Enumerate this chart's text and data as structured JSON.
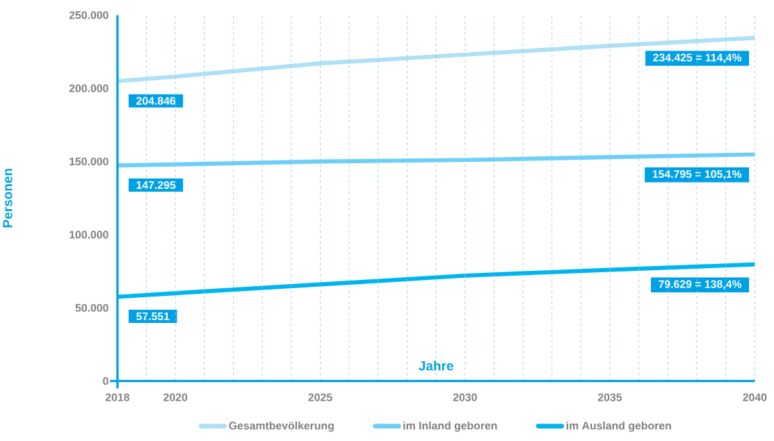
{
  "chart_data": {
    "type": "line",
    "xlabel": "Jahre",
    "ylabel": "Personen",
    "x": [
      2018,
      2020,
      2025,
      2030,
      2035,
      2040
    ],
    "series": [
      {
        "name": "Gesamtbevölkerung",
        "color": "#aee0f7",
        "values": [
          204846,
          208000,
          217000,
          223000,
          229000,
          234425
        ],
        "value_labels": [
          "204.846",
          null,
          null,
          null,
          null,
          "234.425 = 114,4%"
        ]
      },
      {
        "name": "im Inland geboren",
        "color": "#6dcff6",
        "values": [
          147295,
          148000,
          150000,
          151000,
          153000,
          154795
        ],
        "value_labels": [
          "147.295",
          null,
          null,
          null,
          null,
          "154.795 = 105,1%"
        ]
      },
      {
        "name": "im Ausland geboren",
        "color": "#00b4ee",
        "values": [
          57551,
          60000,
          66000,
          72000,
          76000,
          79629
        ],
        "value_labels": [
          "57.551",
          null,
          null,
          null,
          null,
          "79.629 = 138,4%"
        ]
      }
    ],
    "xlim": [
      2018,
      2040
    ],
    "ylim": [
      0,
      250000
    ],
    "xticks": [
      2018,
      {
        "value": 2019,
        "label": null
      },
      2020,
      {
        "value": 2021,
        "label": null
      },
      {
        "value": 2022,
        "label": null
      },
      {
        "value": 2023,
        "label": null
      },
      {
        "value": 2024,
        "label": null
      },
      2025,
      {
        "value": 2026,
        "label": null
      },
      {
        "value": 2027,
        "label": null
      },
      {
        "value": 2028,
        "label": null
      },
      {
        "value": 2029,
        "label": null
      },
      2030,
      {
        "value": 2031,
        "label": null
      },
      {
        "value": 2032,
        "label": null
      },
      {
        "value": 2033,
        "label": null
      },
      {
        "value": 2034,
        "label": null
      },
      2035,
      {
        "value": 2036,
        "label": null
      },
      {
        "value": 2037,
        "label": null
      },
      {
        "value": 2038,
        "label": null
      },
      {
        "value": 2039,
        "label": null
      },
      2040
    ],
    "yticks": [
      0,
      {
        "value": 50000,
        "label": "50.000"
      },
      {
        "value": 100000,
        "label": "100.000"
      },
      {
        "value": 150000,
        "label": "150.000"
      },
      {
        "value": 200000,
        "label": "200.000"
      },
      {
        "value": 250000,
        "label": "250.000"
      }
    ],
    "grid": "x",
    "legend": "bottom",
    "marker": "none"
  }
}
